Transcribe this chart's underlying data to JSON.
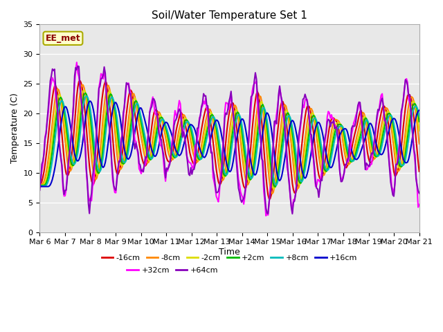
{
  "title": "Soil/Water Temperature Set 1",
  "xlabel": "Time",
  "ylabel": "Temperature (C)",
  "ylim": [
    0,
    35
  ],
  "yticks": [
    0,
    5,
    10,
    15,
    20,
    25,
    30,
    35
  ],
  "x_labels": [
    "Mar 6",
    "Mar 7",
    "Mar 8",
    "Mar 9",
    "Mar 10",
    "Mar 11",
    "Mar 12",
    "Mar 13",
    "Mar 14",
    "Mar 15",
    "Mar 16",
    "Mar 17",
    "Mar 18",
    "Mar 19",
    "Mar 20",
    "Mar 21"
  ],
  "station_label": "EE_met",
  "bg_color": "#e8e8e8",
  "plot_bg": "#e8e8e8",
  "grid_color": "#ffffff",
  "series": [
    {
      "label": "-16cm",
      "color": "#dd0000",
      "lw": 1.5
    },
    {
      "label": "-8cm",
      "color": "#ff8800",
      "lw": 1.5
    },
    {
      "label": "-2cm",
      "color": "#dddd00",
      "lw": 1.5
    },
    {
      "label": "+2cm",
      "color": "#00bb00",
      "lw": 1.5
    },
    {
      "label": "+8cm",
      "color": "#00bbbb",
      "lw": 1.5
    },
    {
      "label": "+16cm",
      "color": "#0000cc",
      "lw": 1.5
    },
    {
      "label": "+32cm",
      "color": "#ff00ff",
      "lw": 1.5
    },
    {
      "label": "+64cm",
      "color": "#8800bb",
      "lw": 1.5
    }
  ],
  "figsize": [
    6.4,
    4.8
  ],
  "dpi": 100,
  "title_fontsize": 11,
  "axis_fontsize": 9,
  "tick_fontsize": 8,
  "legend_fontsize": 8
}
